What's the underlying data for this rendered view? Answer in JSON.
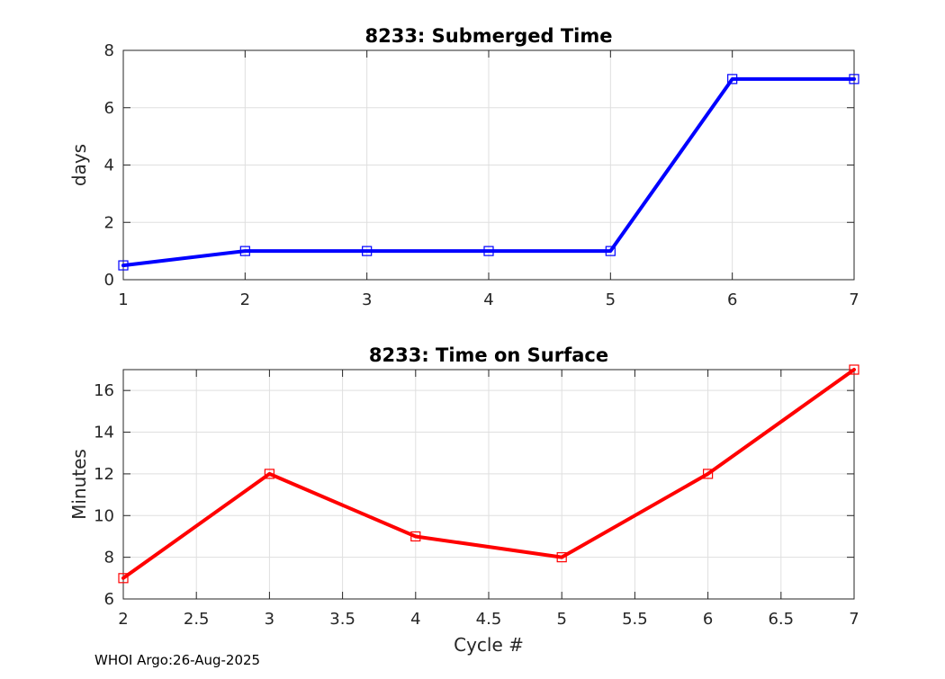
{
  "chart_data": [
    {
      "type": "line",
      "title": "8233: Submerged Time",
      "xlabel": "",
      "ylabel": "days",
      "xlim": [
        1,
        7
      ],
      "ylim": [
        0,
        8
      ],
      "xticks": [
        1,
        2,
        3,
        4,
        5,
        6,
        7
      ],
      "yticks": [
        0,
        2,
        4,
        6,
        8
      ],
      "grid": true,
      "series": [
        {
          "color": "#0000ff",
          "marker": "square",
          "x": [
            1,
            2,
            3,
            4,
            5,
            6,
            7
          ],
          "y": [
            0.5,
            1,
            1,
            1,
            1,
            7,
            7
          ]
        }
      ]
    },
    {
      "type": "line",
      "title": "8233: Time on Surface",
      "xlabel": "Cycle #",
      "ylabel": "Minutes",
      "xlim": [
        2,
        7
      ],
      "ylim": [
        6,
        17
      ],
      "xticks": [
        2,
        2.5,
        3,
        3.5,
        4,
        4.5,
        5,
        5.5,
        6,
        6.5,
        7
      ],
      "yticks": [
        6,
        8,
        10,
        12,
        14,
        16
      ],
      "grid": true,
      "series": [
        {
          "color": "#ff0000",
          "marker": "square",
          "x": [
            2,
            3,
            4,
            5,
            6,
            7
          ],
          "y": [
            7,
            12,
            9,
            8,
            12,
            17
          ]
        }
      ]
    }
  ],
  "footer": "WHOI Argo:26-Aug-2025"
}
